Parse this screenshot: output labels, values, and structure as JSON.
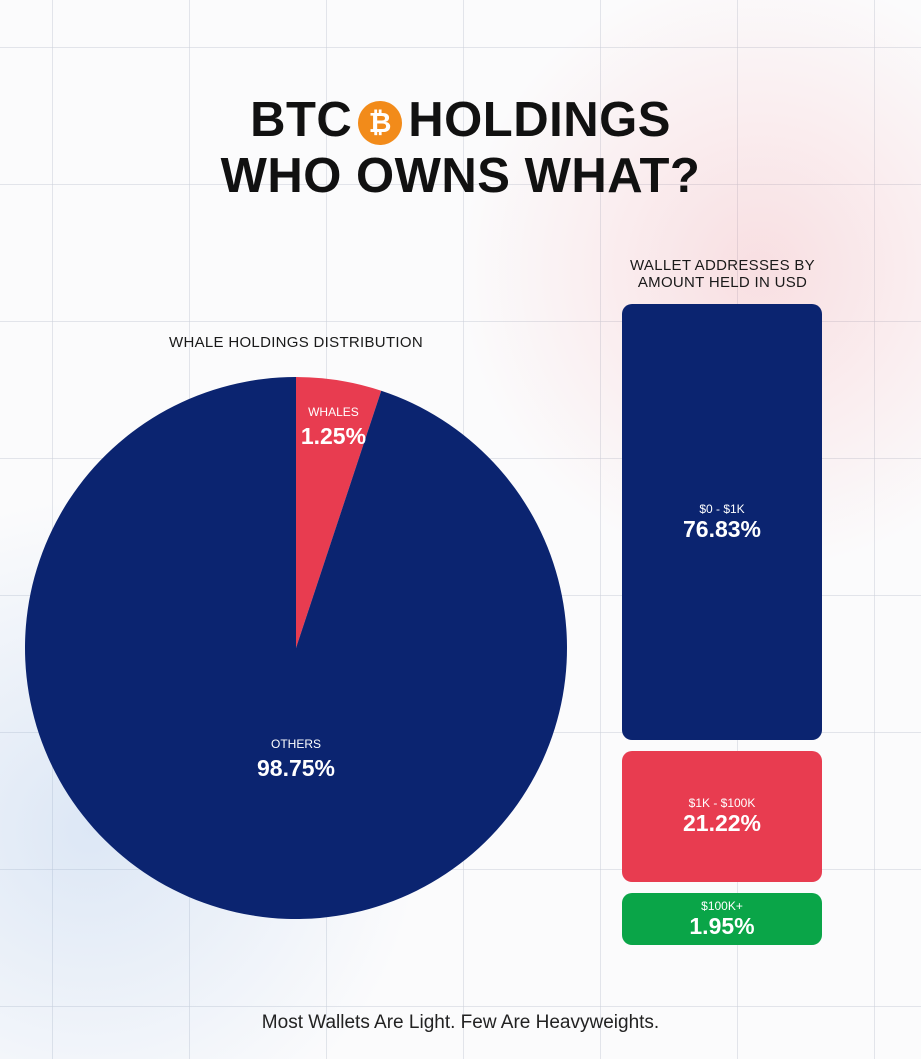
{
  "title": {
    "line1_left": "BTC",
    "coin_symbol": "₿",
    "line1_right": "HOLDINGS",
    "line2": "WHO OWNS WHAT?"
  },
  "footer": "Most Wallets Are Light. Few Are Heavyweights.",
  "colors": {
    "navy": "#0b2470",
    "red": "#e83c50",
    "green": "#0aa548",
    "bitcoin_orange": "#f28b1a"
  },
  "chart_data": [
    {
      "type": "pie",
      "title": "WHALE HOLDINGS DISTRIBUTION",
      "slices": [
        {
          "label": "WHALES",
          "value": 1.25,
          "value_label": "1.25%",
          "color": "#e83c50"
        },
        {
          "label": "OTHERS",
          "value": 98.75,
          "value_label": "98.75%",
          "color": "#0b2470"
        }
      ]
    },
    {
      "type": "bar",
      "orientation": "stacked-vertical",
      "title_lines": [
        "WALLET ADDRESSES BY",
        "AMOUNT HELD IN USD"
      ],
      "categories": [
        "$0 - $1K",
        "$1K - $100K",
        "$100K+"
      ],
      "values": [
        76.83,
        21.22,
        1.95
      ],
      "value_labels": [
        "76.83%",
        "21.22%",
        "1.95%"
      ],
      "colors": [
        "#0b2470",
        "#e83c50",
        "#0aa548"
      ]
    }
  ]
}
